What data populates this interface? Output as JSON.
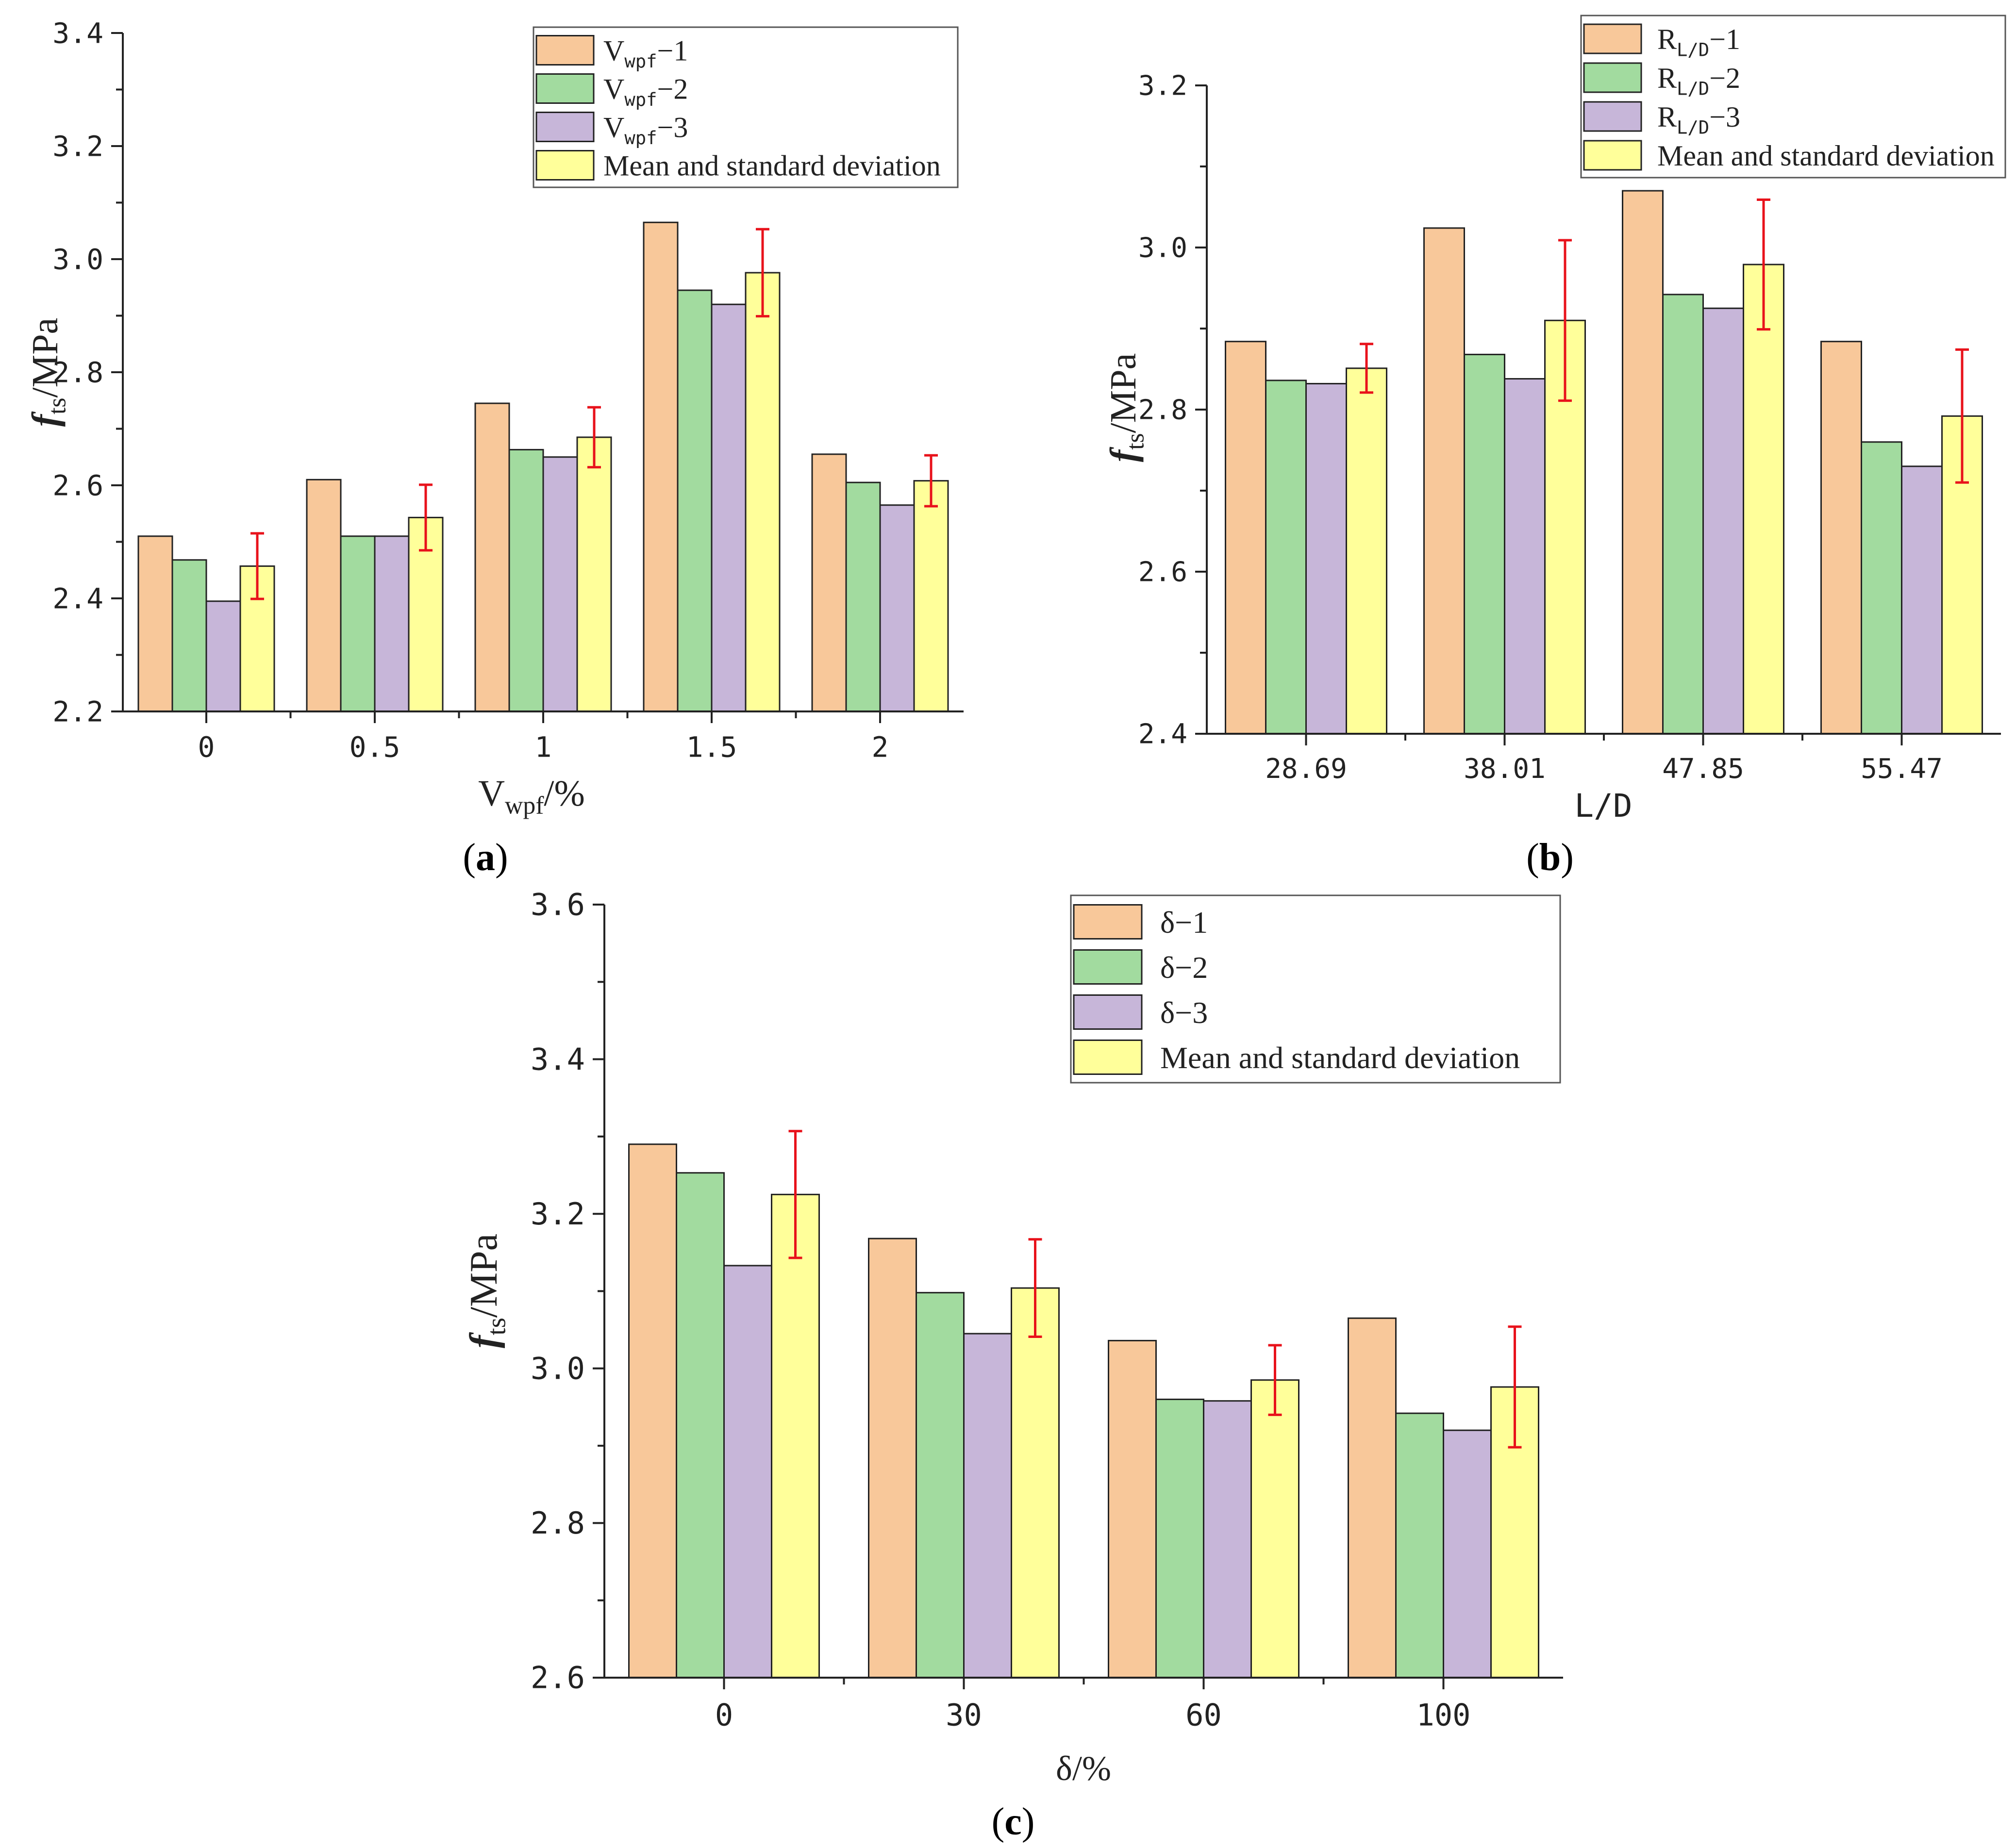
{
  "colors": {
    "series1": "#F8C89A",
    "series2": "#A2DB9F",
    "series3": "#C7B6D9",
    "mean": "#FFFF9A",
    "errorbar": "#E8121B",
    "axis": "#222222"
  },
  "chart_data": [
    {
      "id": "a",
      "type": "bar",
      "panel_label": "a",
      "ylabel_main": "f",
      "ylabel_sub": "ts",
      "ylabel_unit": "/MPa",
      "xlabel_main": "V",
      "xlabel_sub": "wpf",
      "xlabel_unit": "/%",
      "categories": [
        "0",
        "0.5",
        "1",
        "1.5",
        "2"
      ],
      "ylim": [
        2.2,
        3.4
      ],
      "yticks": [
        "2.2",
        "2.4",
        "2.6",
        "2.8",
        "3.0",
        "3.2",
        "3.4"
      ],
      "legend_position": "top-right",
      "series": [
        {
          "legend_main": "V",
          "legend_sub": "wpf",
          "legend_suffix": "−1",
          "values": [
            2.51,
            2.61,
            2.745,
            3.065,
            2.655
          ]
        },
        {
          "legend_main": "V",
          "legend_sub": "wpf",
          "legend_suffix": "−2",
          "values": [
            2.468,
            2.51,
            2.663,
            2.945,
            2.605
          ]
        },
        {
          "legend_main": "V",
          "legend_sub": "wpf",
          "legend_suffix": "−3",
          "values": [
            2.395,
            2.51,
            2.65,
            2.92,
            2.565
          ]
        },
        {
          "legend_main": "Mean and standard deviation",
          "legend_sub": "",
          "legend_suffix": "",
          "values": [
            2.457,
            2.543,
            2.685,
            2.976,
            2.608
          ],
          "errors": [
            0.058,
            0.058,
            0.053,
            0.077,
            0.045
          ]
        }
      ]
    },
    {
      "id": "b",
      "type": "bar",
      "panel_label": "b",
      "ylabel_main": "f",
      "ylabel_sub": "ts",
      "ylabel_unit": "/MPa",
      "xlabel_main": "L/D",
      "xlabel_sub": "",
      "xlabel_unit": "",
      "categories": [
        "28.69",
        "38.01",
        "47.85",
        "55.47"
      ],
      "ylim": [
        2.4,
        3.2
      ],
      "yticks": [
        "2.4",
        "2.6",
        "2.8",
        "3.0",
        "3.2"
      ],
      "legend_position": "top-right",
      "series": [
        {
          "legend_main": "R",
          "legend_sub": "L/D",
          "legend_suffix": "−1",
          "values": [
            2.884,
            3.024,
            3.07,
            2.884
          ]
        },
        {
          "legend_main": "R",
          "legend_sub": "L/D",
          "legend_suffix": "−2",
          "values": [
            2.836,
            2.868,
            2.942,
            2.76
          ]
        },
        {
          "legend_main": "R",
          "legend_sub": "L/D",
          "legend_suffix": "−3",
          "values": [
            2.832,
            2.838,
            2.925,
            2.73
          ]
        },
        {
          "legend_main": "Mean and standard deviation",
          "legend_sub": "",
          "legend_suffix": "",
          "values": [
            2.851,
            2.91,
            2.979,
            2.792
          ],
          "errors": [
            0.03,
            0.099,
            0.08,
            0.082
          ]
        }
      ]
    },
    {
      "id": "c",
      "type": "bar",
      "panel_label": "c",
      "ylabel_main": "f",
      "ylabel_sub": "ts",
      "ylabel_unit": "/MPa",
      "xlabel_main": "δ",
      "xlabel_sub": "",
      "xlabel_unit": "/%",
      "categories": [
        "0",
        "30",
        "60",
        "100"
      ],
      "ylim": [
        2.6,
        3.6
      ],
      "yticks": [
        "2.6",
        "2.8",
        "3.0",
        "3.2",
        "3.4",
        "3.6"
      ],
      "legend_position": "top-right",
      "series": [
        {
          "legend_main": "δ",
          "legend_sub": "",
          "legend_suffix": "−1",
          "values": [
            3.29,
            3.168,
            3.036,
            3.065
          ]
        },
        {
          "legend_main": "δ",
          "legend_sub": "",
          "legend_suffix": "−2",
          "values": [
            3.253,
            3.098,
            2.96,
            2.942
          ]
        },
        {
          "legend_main": "δ",
          "legend_sub": "",
          "legend_suffix": "−3",
          "values": [
            3.133,
            3.045,
            2.958,
            2.92
          ]
        },
        {
          "legend_main": "Mean and standard deviation",
          "legend_sub": "",
          "legend_suffix": "",
          "values": [
            3.225,
            3.104,
            2.985,
            2.976
          ],
          "errors": [
            0.082,
            0.063,
            0.045,
            0.078
          ]
        }
      ]
    }
  ]
}
